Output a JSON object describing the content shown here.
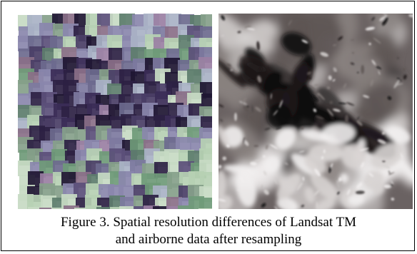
{
  "figure": {
    "caption_line1": "Figure 3. Spatial resolution differences of Landsat TM",
    "caption_line2": "and airborne data after resampling"
  },
  "colors": {
    "landsat_palette": [
      "#4a3e66",
      "#5b4f79",
      "#6d6a8e",
      "#7d7aa0",
      "#8a87ac",
      "#5d7d6d",
      "#6f9a78",
      "#86a08a",
      "#b6d0b3",
      "#c7dac3",
      "#2c2143",
      "#1e1632",
      "#8a6f88",
      "#9a7fa3",
      "#a9b2c6"
    ],
    "airborne_palette": [
      "#0b0a0d",
      "#1d1a1b",
      "#3b3636",
      "#5d5554",
      "#8a8280",
      "#b7b3b2",
      "#d7d3d2",
      "#f1eeee"
    ]
  }
}
